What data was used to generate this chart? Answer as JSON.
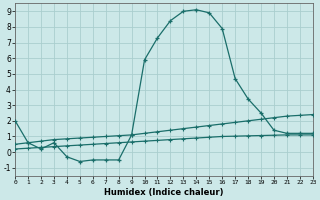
{
  "xlabel": "Humidex (Indice chaleur)",
  "bg_color": "#cce8e8",
  "grid_color": "#aacece",
  "line_color": "#1a6e6a",
  "x_ticks": [
    0,
    1,
    2,
    3,
    4,
    5,
    6,
    7,
    8,
    9,
    10,
    11,
    12,
    13,
    14,
    15,
    16,
    17,
    18,
    19,
    20,
    21,
    22,
    23
  ],
  "xlim": [
    0,
    23
  ],
  "ylim": [
    -1.5,
    9.5
  ],
  "y_ticks": [
    -1,
    0,
    1,
    2,
    3,
    4,
    5,
    6,
    7,
    8,
    9
  ],
  "series1": [
    2.0,
    0.6,
    0.2,
    0.6,
    -0.3,
    -0.6,
    -0.5,
    -0.5,
    -0.5,
    1.1,
    5.9,
    7.3,
    8.4,
    9.0,
    9.1,
    8.9,
    7.9,
    4.7,
    3.4,
    2.5,
    1.4,
    1.2,
    1.2,
    1.2
  ],
  "series2": [
    0.5,
    0.6,
    0.7,
    0.8,
    0.85,
    0.9,
    0.95,
    1.0,
    1.05,
    1.1,
    1.2,
    1.3,
    1.4,
    1.5,
    1.6,
    1.7,
    1.8,
    1.9,
    2.0,
    2.1,
    2.2,
    2.3,
    2.35,
    2.4
  ],
  "series3": [
    0.2,
    0.25,
    0.3,
    0.35,
    0.4,
    0.45,
    0.5,
    0.55,
    0.6,
    0.65,
    0.7,
    0.75,
    0.8,
    0.85,
    0.9,
    0.95,
    1.0,
    1.02,
    1.04,
    1.06,
    1.08,
    1.1,
    1.1,
    1.1
  ]
}
